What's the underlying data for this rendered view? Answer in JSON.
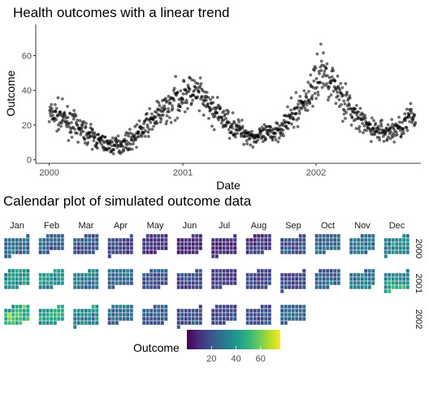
{
  "chart_data": [
    {
      "type": "scatter",
      "title": "Health outcomes with a linear trend",
      "xlabel": "Date",
      "ylabel": "Outcome",
      "x_range": [
        "1999-11-25",
        "2002-10-15"
      ],
      "x_ticks": [
        {
          "date": "2000-01-01",
          "label": "2000"
        },
        {
          "date": "2001-01-01",
          "label": "2001"
        },
        {
          "date": "2002-01-01",
          "label": "2002"
        }
      ],
      "ylim": [
        -2,
        78
      ],
      "y_ticks": [
        0,
        20,
        40,
        60
      ],
      "grid": false,
      "point_color": "#000000",
      "series": [
        {
          "note_frequency": "daily",
          "start": "2000-01-01",
          "end": "2002-09-30",
          "monthly_mean_outcome": [
            [
              "2000-01",
              26
            ],
            [
              "2000-02",
              23
            ],
            [
              "2000-03",
              19
            ],
            [
              "2000-04",
              15
            ],
            [
              "2000-05",
              11
            ],
            [
              "2000-06",
              8
            ],
            [
              "2000-07",
              9
            ],
            [
              "2000-08",
              12
            ],
            [
              "2000-09",
              18
            ],
            [
              "2000-10",
              24
            ],
            [
              "2000-11",
              29
            ],
            [
              "2000-12",
              35
            ],
            [
              "2001-01",
              39
            ],
            [
              "2001-02",
              37
            ],
            [
              "2001-03",
              30
            ],
            [
              "2001-04",
              25
            ],
            [
              "2001-05",
              20
            ],
            [
              "2001-06",
              16
            ],
            [
              "2001-07",
              13
            ],
            [
              "2001-08",
              14
            ],
            [
              "2001-09",
              17
            ],
            [
              "2001-10",
              22
            ],
            [
              "2001-11",
              30
            ],
            [
              "2001-12",
              38
            ],
            [
              "2002-01",
              52
            ],
            [
              "2002-02",
              45
            ],
            [
              "2002-03",
              36
            ],
            [
              "2002-04",
              26
            ],
            [
              "2002-05",
              20
            ],
            [
              "2002-06",
              17
            ],
            [
              "2002-07",
              16
            ],
            [
              "2002-08",
              18
            ],
            [
              "2002-09",
              24
            ]
          ]
        }
      ]
    },
    {
      "type": "heatmap",
      "title": "Calendar plot of simulated outcome data",
      "columns": [
        "Jan",
        "Feb",
        "Mar",
        "Apr",
        "May",
        "Jun",
        "Jul",
        "Aug",
        "Sep",
        "Oct",
        "Nov",
        "Dec"
      ],
      "rows": [
        "2000",
        "2001",
        "2002"
      ],
      "monthly_mean_outcome": [
        [
          26,
          23,
          19,
          15,
          11,
          8,
          9,
          12,
          18,
          24,
          29,
          35
        ],
        [
          39,
          37,
          30,
          25,
          20,
          16,
          13,
          14,
          17,
          22,
          30,
          38
        ],
        [
          52,
          45,
          36,
          26,
          20,
          17,
          16,
          18,
          24,
          null,
          null,
          null
        ]
      ],
      "legend": {
        "title": "Outcome",
        "position": "bottom",
        "range": [
          0,
          76
        ],
        "ticks": [
          20,
          40,
          60
        ],
        "palette": [
          "#440154",
          "#482878",
          "#3E4A89",
          "#31688E",
          "#26828E",
          "#1F9E89",
          "#35B779",
          "#6DCD59",
          "#B4DE2C",
          "#FDE725"
        ]
      }
    }
  ]
}
